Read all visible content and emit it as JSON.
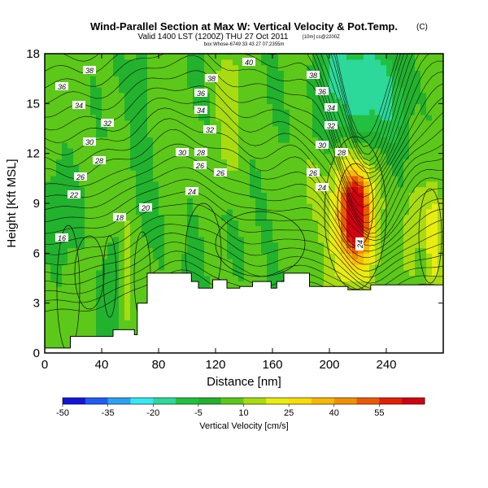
{
  "chart_data": {
    "type": "heatmap",
    "title": "Wind-Parallel Section at Max W: Vertical Velocity & Pot.Temp.",
    "title_mark": "(C)",
    "subtitle": "Valid 1400 LST (1200Z) THU 27 Oct 2011",
    "subtitle_extra": "[10m] cs@2200Z",
    "small_note": "box:Whose-6749 33 43 27 07:2355m",
    "xlabel": "Distance [nm]",
    "ylabel": "Height [Kft MSL]",
    "xlim": [
      0,
      280
    ],
    "ylim": [
      0,
      18
    ],
    "xticks": [
      0,
      40,
      80,
      120,
      160,
      200,
      240
    ],
    "yticks": [
      0,
      3,
      6,
      9,
      12,
      15,
      18
    ],
    "colorbar": {
      "label": "Vertical Velocity [cm/s]",
      "range": [
        -50,
        70
      ],
      "tick_values": [
        -50,
        -35,
        -20,
        -5,
        10,
        25,
        40,
        55
      ],
      "colors": [
        "#1414d8",
        "#1f5cf5",
        "#2ea0f2",
        "#35e8f2",
        "#2cd89a",
        "#22c040",
        "#22b22e",
        "#5cc81a",
        "#a8dc10",
        "#e8ec10",
        "#f8dc08",
        "#f6b804",
        "#f29002",
        "#ea5a00",
        "#e02000",
        "#d20010"
      ]
    },
    "background_w": 5,
    "velocity_features": [
      {
        "x": 218,
        "z": 8.4,
        "sx": 7,
        "sz": 1.7,
        "w": 58
      },
      {
        "x": 215,
        "z": 7.8,
        "sx": 12,
        "sz": 3.2,
        "w": 22
      },
      {
        "x": 258,
        "z": 7.6,
        "sx": 5,
        "sz": 2.0,
        "w": 14
      },
      {
        "x": 273,
        "z": 6.8,
        "sx": 4,
        "sz": 2.5,
        "w": 16
      },
      {
        "x": 222,
        "z": 16.0,
        "sx": 16,
        "sz": 2.4,
        "w": -22
      },
      {
        "x": 200,
        "z": 14.0,
        "sx": 7,
        "sz": 1.6,
        "w": -10
      },
      {
        "x": 246,
        "z": 15.0,
        "sx": 9,
        "sz": 2.0,
        "w": -12
      },
      {
        "x": 58,
        "z": 5.0,
        "sx": 3,
        "sz": 2.5,
        "w": 10
      },
      {
        "x": 46,
        "z": 4.0,
        "sx": 5,
        "sz": 3.0,
        "w": -9
      },
      {
        "x": 103,
        "z": 5.5,
        "sx": 6,
        "sz": 3.0,
        "w": -8
      },
      {
        "x": 160,
        "z": 7.0,
        "sx": 10,
        "sz": 3.0,
        "w": -4
      },
      {
        "x": 130,
        "z": 14.0,
        "sx": 6,
        "sz": 3.0,
        "w": 9
      },
      {
        "x": 190,
        "z": 10.0,
        "sx": 10,
        "sz": 2.0,
        "w": 6
      },
      {
        "x": 68,
        "z": 15.0,
        "sx": 5,
        "sz": 4.0,
        "w": -10
      },
      {
        "x": 10,
        "z": 8.5,
        "sx": 8,
        "sz": 2.0,
        "w": -7
      },
      {
        "x": 200,
        "z": 17.2,
        "sx": 6,
        "sz": 1.2,
        "w": -14
      }
    ],
    "terrain": [
      [
        0,
        0.3
      ],
      [
        18,
        0.3
      ],
      [
        18,
        1.0
      ],
      [
        48,
        1.0
      ],
      [
        48,
        1.4
      ],
      [
        63,
        1.4
      ],
      [
        63,
        1.1
      ],
      [
        65,
        1.1
      ],
      [
        65,
        3.0
      ],
      [
        72,
        3.0
      ],
      [
        72,
        4.8
      ],
      [
        103,
        4.8
      ],
      [
        103,
        4.3
      ],
      [
        108,
        4.3
      ],
      [
        108,
        3.9
      ],
      [
        118,
        3.9
      ],
      [
        118,
        4.4
      ],
      [
        128,
        4.4
      ],
      [
        128,
        3.9
      ],
      [
        137,
        3.9
      ],
      [
        137,
        4.0
      ],
      [
        146,
        4.0
      ],
      [
        146,
        4.3
      ],
      [
        159,
        4.3
      ],
      [
        159,
        3.9
      ],
      [
        163,
        3.9
      ],
      [
        163,
        4.3
      ],
      [
        168,
        4.3
      ],
      [
        168,
        4.8
      ],
      [
        186,
        4.8
      ],
      [
        186,
        4.0
      ],
      [
        213,
        4.0
      ],
      [
        213,
        3.8
      ],
      [
        229,
        3.8
      ],
      [
        229,
        4.1
      ],
      [
        280,
        4.1
      ]
    ],
    "contour_labels": [
      "16",
      "18",
      "20",
      "22",
      "24",
      "24",
      "24",
      "26",
      "26",
      "26",
      "26",
      "28",
      "28",
      "28",
      "30",
      "30",
      "30",
      "32",
      "32",
      "32",
      "34",
      "34",
      "34",
      "36",
      "36",
      "36",
      "38",
      "38",
      "38",
      "40"
    ]
  }
}
